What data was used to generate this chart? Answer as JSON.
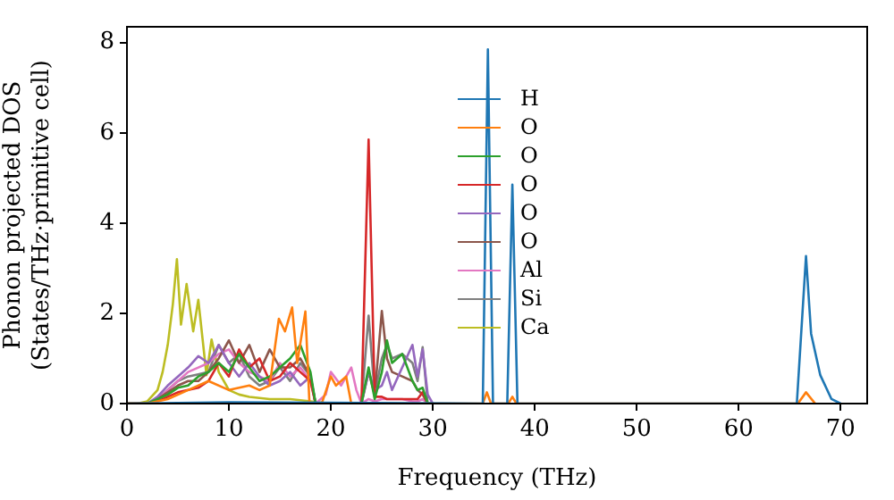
{
  "chart_data": {
    "type": "line",
    "xlabel": "Frequency (THz)",
    "ylabel": "Phonon projected DOS\n(States/THz·primitive cell)",
    "x": [
      0,
      2,
      3,
      4,
      5,
      6,
      7,
      8,
      9,
      10,
      11,
      12,
      13,
      14,
      15,
      16,
      17,
      18,
      18.5,
      19.5,
      20,
      21,
      22,
      22.5,
      23,
      23.7,
      24.3,
      25,
      25.5,
      26,
      27,
      28,
      28.5,
      29,
      29.5,
      30
    ],
    "xlim": [
      0,
      72.6
    ],
    "ylim": [
      0,
      8.35
    ],
    "xticks": [
      0,
      10,
      20,
      30,
      40,
      50,
      60,
      70
    ],
    "yticks": [
      0,
      2,
      4,
      6,
      8
    ],
    "grid": false,
    "legend": "top",
    "series": [
      {
        "name": "H",
        "color": "#1f77b4",
        "x": [
          0,
          10,
          20,
          34.9,
          35.4,
          35.9,
          37.3,
          37.8,
          38.3,
          65.7,
          66.6,
          67.1,
          68.0,
          69.1,
          70
        ],
        "values": [
          0,
          0.03,
          0.02,
          0,
          7.85,
          0,
          0,
          4.85,
          0,
          0,
          3.27,
          1.55,
          0.63,
          0.1,
          0
        ]
      },
      {
        "name": "O",
        "color": "#ff7f0e",
        "x": [
          0,
          2,
          4,
          6,
          8,
          10,
          12,
          13,
          14,
          14.9,
          15.5,
          16.2,
          16.7,
          17.5,
          17.9,
          19.1,
          20,
          20.5,
          21.5,
          22,
          23,
          34.9,
          35.3,
          35.7,
          37.4,
          37.8,
          38.2,
          65.8,
          66.6,
          67.5
        ],
        "values": [
          0,
          0,
          0.1,
          0.3,
          0.5,
          0.3,
          0.4,
          0.3,
          0.4,
          1.88,
          1.6,
          2.13,
          0.9,
          2.04,
          0,
          0,
          0.6,
          0.4,
          0.6,
          0,
          0,
          0,
          0.25,
          0,
          0,
          0.15,
          0,
          0,
          0.25,
          0
        ]
      },
      {
        "name": "O",
        "color": "#2ca02c",
        "values": [
          0,
          0,
          0.1,
          0.2,
          0.35,
          0.4,
          0.6,
          0.7,
          0.9,
          0.7,
          1.1,
          0.8,
          0.5,
          0.6,
          0.8,
          1.0,
          1.3,
          0.7,
          0,
          0,
          0,
          0,
          0,
          0,
          0,
          0.8,
          0.1,
          0.7,
          1.4,
          0.9,
          1.1,
          0.5,
          0.3,
          0.35,
          0,
          0
        ]
      },
      {
        "name": "O",
        "color": "#d62728",
        "values": [
          0,
          0,
          0.05,
          0.15,
          0.25,
          0.3,
          0.35,
          0.5,
          0.9,
          0.6,
          1.2,
          0.8,
          1.0,
          0.5,
          0.6,
          0.9,
          0.7,
          0.5,
          0,
          0,
          0,
          0,
          0,
          0,
          0,
          5.85,
          0.15,
          0.15,
          0.1,
          0.1,
          0.1,
          0.1,
          0.1,
          0.25,
          0,
          0
        ]
      },
      {
        "name": "O",
        "color": "#9467bd",
        "values": [
          0,
          0,
          0.15,
          0.4,
          0.6,
          0.8,
          1.05,
          0.9,
          1.3,
          0.9,
          0.6,
          0.9,
          0.6,
          0.4,
          0.5,
          0.7,
          0.4,
          0.6,
          0,
          0,
          0,
          0,
          0,
          0,
          0,
          0.7,
          0.3,
          0.4,
          0.7,
          0.3,
          0.8,
          1.3,
          0.6,
          1.2,
          0.2,
          0
        ]
      },
      {
        "name": "O",
        "color": "#8c564b",
        "values": [
          0,
          0,
          0.1,
          0.25,
          0.4,
          0.5,
          0.5,
          0.7,
          1.0,
          1.4,
          0.9,
          1.3,
          0.7,
          1.2,
          0.8,
          0.8,
          1.0,
          0.6,
          0,
          0,
          0,
          0,
          0,
          0,
          0,
          0.7,
          0.2,
          2.05,
          1.0,
          0.7,
          0.6,
          0.5,
          0.3,
          0.2,
          0,
          0
        ]
      },
      {
        "name": "Al",
        "color": "#e377c2",
        "values": [
          0,
          0,
          0.1,
          0.3,
          0.5,
          0.7,
          0.8,
          0.9,
          1.1,
          1.2,
          0.9,
          0.7,
          0.6,
          0.5,
          0.9,
          0.6,
          0.8,
          0.5,
          0,
          0.2,
          0.7,
          0.4,
          0.8,
          0.3,
          0,
          0.1,
          0.05,
          0.1,
          0.1,
          0.1,
          0.1,
          0.05,
          0.05,
          0.1,
          0,
          0
        ]
      },
      {
        "name": "Si",
        "color": "#7f7f7f",
        "values": [
          0,
          0,
          0.1,
          0.3,
          0.5,
          0.6,
          0.65,
          0.7,
          1.3,
          0.9,
          1.1,
          0.6,
          0.4,
          0.5,
          0.8,
          0.5,
          0.9,
          0.6,
          0,
          0,
          0,
          0,
          0,
          0,
          0,
          1.95,
          0.2,
          1.0,
          1.3,
          1.0,
          1.1,
          0.9,
          0.5,
          1.25,
          0,
          0
        ]
      },
      {
        "name": "Ca",
        "color": "#bcbd22",
        "x": [
          0,
          1,
          2,
          3,
          3.5,
          4,
          4.5,
          4.9,
          5.3,
          5.85,
          6.5,
          7.0,
          7.8,
          8.3,
          9,
          10,
          11,
          12,
          14,
          16,
          18,
          20
        ],
        "values": [
          0,
          0,
          0.05,
          0.3,
          0.7,
          1.3,
          2.2,
          3.2,
          1.75,
          2.65,
          1.6,
          2.3,
          0.63,
          1.42,
          0.7,
          0.3,
          0.2,
          0.15,
          0.1,
          0.1,
          0.05,
          0
        ]
      }
    ]
  }
}
